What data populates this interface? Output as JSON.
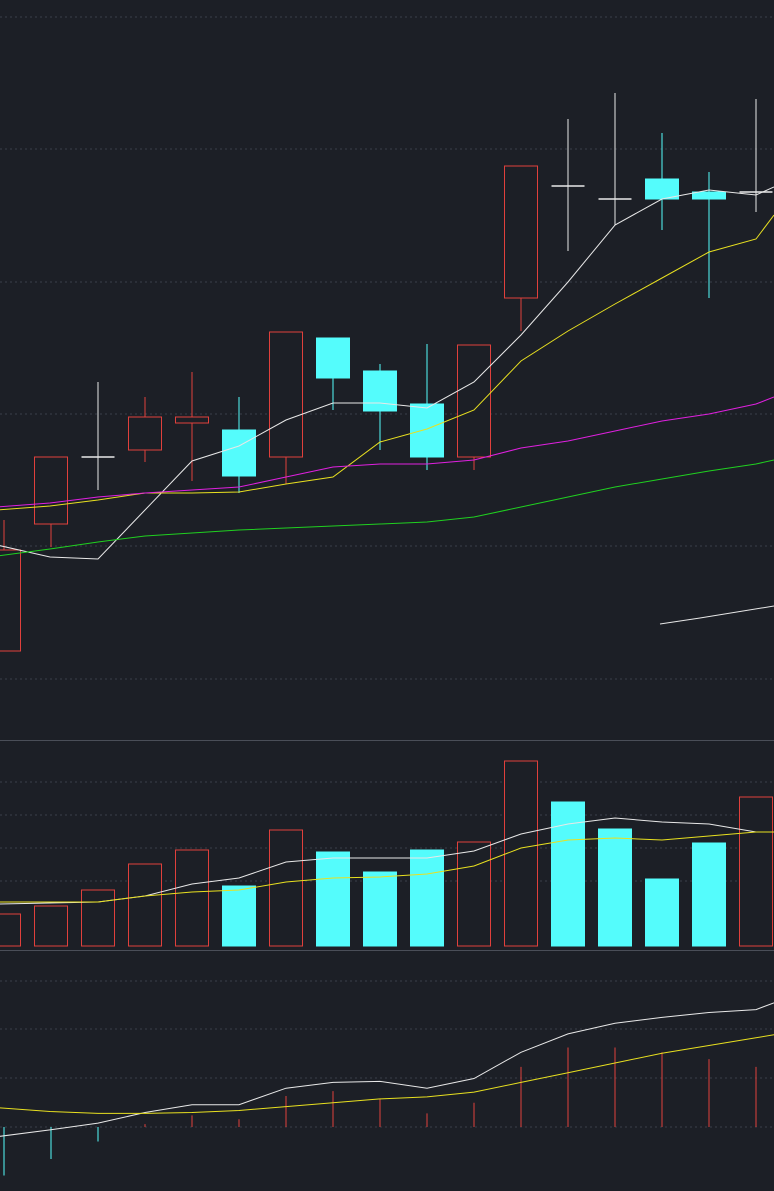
{
  "colors": {
    "background": "#1c1f26",
    "up": "#e0403c",
    "down": "#54fcfc",
    "neutral": "#e8e8e8",
    "ma_white": "#e8e8e8",
    "ma_yellow": "#e8e020",
    "ma_magenta": "#e020e0",
    "ma_green": "#20d020",
    "grid": "#3a3f4a",
    "divider": "#4a4e58"
  },
  "chart_data": [
    {
      "type": "candlestick",
      "panel": "price",
      "ylim": [
        0,
        740
      ],
      "grid": "dotted-horizontal",
      "candles": [
        {
          "o": 89,
          "c": 190,
          "h": 220,
          "l": 89
        },
        {
          "o": 216,
          "c": 283,
          "h": 283,
          "l": 193
        },
        {
          "o": 283,
          "c": 283,
          "h": 358,
          "l": 250
        },
        {
          "o": 290,
          "c": 323,
          "h": 343,
          "l": 278
        },
        {
          "o": 317,
          "c": 323,
          "h": 368,
          "l": 259
        },
        {
          "o": 310,
          "c": 264,
          "h": 343,
          "l": 247
        },
        {
          "o": 283,
          "c": 408,
          "h": 408,
          "l": 256
        },
        {
          "o": 402,
          "c": 362,
          "h": 402,
          "l": 330
        },
        {
          "o": 369,
          "c": 329,
          "h": 376,
          "l": 290
        },
        {
          "o": 336,
          "c": 283,
          "h": 396,
          "l": 270
        },
        {
          "o": 283,
          "c": 395,
          "h": 395,
          "l": 270
        },
        {
          "o": 442,
          "c": 574,
          "h": 574,
          "l": 409
        },
        {
          "o": 554,
          "c": 554,
          "h": 621,
          "l": 489
        },
        {
          "o": 541,
          "c": 541,
          "h": 647,
          "l": 515
        },
        {
          "o": 561,
          "c": 541,
          "h": 607,
          "l": 510
        },
        {
          "o": 548,
          "c": 541,
          "h": 568,
          "l": 442
        },
        {
          "o": 548,
          "c": 548,
          "h": 641,
          "l": 528
        }
      ],
      "ma_series": [
        {
          "color_key": "ma_white",
          "values": [
            [
              -3,
              195
            ],
            [
              50,
              183
            ],
            [
              98,
              181
            ],
            [
              145,
              230
            ],
            [
              192,
              279
            ],
            [
              239,
              294
            ],
            [
              286,
              320
            ],
            [
              333,
              337
            ],
            [
              380,
              337
            ],
            [
              427,
              332
            ],
            [
              474,
              358
            ],
            [
              521,
              405
            ],
            [
              568,
              458
            ],
            [
              615,
              515
            ],
            [
              662,
              541
            ],
            [
              709,
              550
            ],
            [
              756,
              545
            ],
            [
              774,
              553
            ]
          ]
        },
        {
          "color_key": "ma_yellow",
          "values": [
            [
              -3,
              230
            ],
            [
              50,
              234
            ],
            [
              98,
              240
            ],
            [
              145,
              247
            ],
            [
              192,
              247
            ],
            [
              239,
              248
            ],
            [
              286,
              256
            ],
            [
              333,
              263
            ],
            [
              380,
              298
            ],
            [
              427,
              311
            ],
            [
              474,
              330
            ],
            [
              521,
              379
            ],
            [
              568,
              409
            ],
            [
              615,
              436
            ],
            [
              662,
              462
            ],
            [
              709,
              488
            ],
            [
              756,
              501
            ],
            [
              774,
              525
            ]
          ]
        },
        {
          "color_key": "ma_magenta",
          "values": [
            [
              -3,
              233
            ],
            [
              50,
              237
            ],
            [
              98,
              243
            ],
            [
              145,
              247
            ],
            [
              192,
              250
            ],
            [
              239,
              253
            ],
            [
              286,
              263
            ],
            [
              333,
              273
            ],
            [
              380,
              276
            ],
            [
              427,
              276
            ],
            [
              474,
              280
            ],
            [
              521,
              292
            ],
            [
              568,
              299
            ],
            [
              615,
              309
            ],
            [
              662,
              319
            ],
            [
              709,
              326
            ],
            [
              756,
              336
            ],
            [
              774,
              343
            ]
          ]
        },
        {
          "color_key": "ma_green",
          "values": [
            [
              -3,
              184
            ],
            [
              50,
              191
            ],
            [
              98,
              198
            ],
            [
              145,
              204
            ],
            [
              192,
              207
            ],
            [
              239,
              210
            ],
            [
              286,
              212
            ],
            [
              333,
              214
            ],
            [
              380,
              216
            ],
            [
              427,
              218
            ],
            [
              474,
              223
            ],
            [
              521,
              233
            ],
            [
              568,
              243
            ],
            [
              615,
              253
            ],
            [
              662,
              261
            ],
            [
              709,
              269
            ],
            [
              756,
              276
            ],
            [
              774,
              280
            ]
          ]
        },
        {
          "color_key": "ma_white",
          "values": [
            [
              660,
              116
            ],
            [
              700,
              122
            ],
            [
              774,
              134
            ]
          ]
        }
      ]
    },
    {
      "type": "bar",
      "panel": "volume",
      "ylim": [
        0,
        210
      ],
      "grid": "dotted-horizontal",
      "bars": [
        {
          "v": 32,
          "dir": "up"
        },
        {
          "v": 40,
          "dir": "up"
        },
        {
          "v": 56,
          "dir": "up"
        },
        {
          "v": 82,
          "dir": "up"
        },
        {
          "v": 96,
          "dir": "up"
        },
        {
          "v": 60,
          "dir": "down"
        },
        {
          "v": 116,
          "dir": "up"
        },
        {
          "v": 94,
          "dir": "down"
        },
        {
          "v": 74,
          "dir": "down"
        },
        {
          "v": 96,
          "dir": "down"
        },
        {
          "v": 104,
          "dir": "up"
        },
        {
          "v": 185,
          "dir": "up"
        },
        {
          "v": 144,
          "dir": "down"
        },
        {
          "v": 117,
          "dir": "down"
        },
        {
          "v": 67,
          "dir": "down"
        },
        {
          "v": 103,
          "dir": "down"
        },
        {
          "v": 149,
          "dir": "up"
        }
      ],
      "ma_series": [
        {
          "color_key": "ma_white",
          "values": [
            [
              -3,
              42
            ],
            [
              50,
              43
            ],
            [
              98,
              44
            ],
            [
              145,
              50
            ],
            [
              192,
              62
            ],
            [
              239,
              68
            ],
            [
              286,
              84
            ],
            [
              333,
              88
            ],
            [
              380,
              88
            ],
            [
              427,
              88
            ],
            [
              474,
              95
            ],
            [
              521,
              112
            ],
            [
              568,
              122
            ],
            [
              615,
              128
            ],
            [
              662,
              124
            ],
            [
              709,
              122
            ],
            [
              756,
              114
            ],
            [
              774,
              114
            ]
          ]
        },
        {
          "color_key": "ma_yellow",
          "values": [
            [
              -3,
              44
            ],
            [
              50,
              44
            ],
            [
              98,
              44
            ],
            [
              145,
              50
            ],
            [
              192,
              54
            ],
            [
              239,
              56
            ],
            [
              286,
              64
            ],
            [
              333,
              68
            ],
            [
              380,
              69
            ],
            [
              427,
              72
            ],
            [
              474,
              80
            ],
            [
              521,
              98
            ],
            [
              568,
              106
            ],
            [
              615,
              108
            ],
            [
              662,
              106
            ],
            [
              709,
              110
            ],
            [
              756,
              114
            ],
            [
              774,
              114
            ]
          ]
        }
      ]
    },
    {
      "type": "line",
      "panel": "indicator",
      "ylim": [
        -60,
        200
      ],
      "grid": "dotted-horizontal",
      "zero_line": true,
      "hist": [
        -50,
        -33,
        -15,
        3,
        12,
        8,
        32,
        37,
        29,
        14,
        25,
        62,
        82,
        82,
        77,
        70,
        62
      ],
      "lines": [
        {
          "color_key": "ma_white",
          "values": [
            [
              -3,
              -10
            ],
            [
              50,
              -3
            ],
            [
              98,
              4
            ],
            [
              145,
              15
            ],
            [
              192,
              23
            ],
            [
              239,
              23
            ],
            [
              286,
              40
            ],
            [
              333,
              46
            ],
            [
              380,
              47
            ],
            [
              427,
              40
            ],
            [
              474,
              50
            ],
            [
              521,
              77
            ],
            [
              568,
              96
            ],
            [
              615,
              107
            ],
            [
              662,
              113
            ],
            [
              709,
              118
            ],
            [
              756,
              121
            ],
            [
              774,
              128
            ]
          ]
        },
        {
          "color_key": "ma_yellow",
          "values": [
            [
              -3,
              20
            ],
            [
              50,
              16
            ],
            [
              98,
              14
            ],
            [
              145,
              14
            ],
            [
              192,
              15
            ],
            [
              239,
              17
            ],
            [
              286,
              21
            ],
            [
              333,
              25
            ],
            [
              380,
              29
            ],
            [
              427,
              31
            ],
            [
              474,
              36
            ],
            [
              521,
              46
            ],
            [
              568,
              56
            ],
            [
              615,
              66
            ],
            [
              662,
              76
            ],
            [
              709,
              84
            ],
            [
              756,
              92
            ],
            [
              774,
              95
            ]
          ]
        }
      ]
    }
  ]
}
